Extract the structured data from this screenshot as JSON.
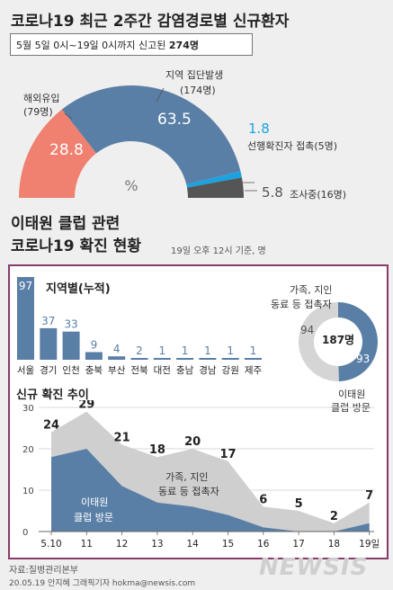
{
  "header": {
    "title": "코로나19 최근 2주간 감염경로별 신규환자",
    "subtitle_prefix": "5월 5일 0시~19일 0시까지 신고된 ",
    "subtitle_total": "274명"
  },
  "donut": {
    "center_symbol": "%",
    "segments": [
      {
        "name": "해외유입",
        "count_label": "(79명)",
        "value": 28.8,
        "color": "#f08070"
      },
      {
        "name": "지역 집단발생",
        "count_label": "(174명)",
        "value": 63.5,
        "color": "#5a7fa6"
      },
      {
        "name": "선행확진자 접촉",
        "count_label": "(5명)",
        "value": 1.8,
        "color": "#1aa3e0"
      },
      {
        "name": "조사중",
        "count_label": "(16명)",
        "value": 5.8,
        "color": "#555555"
      }
    ],
    "labels": {
      "seg0_name": "해외유입",
      "seg0_count": "(79명)",
      "seg0_value": "28.8",
      "seg1_name": "지역 집단발생",
      "seg1_count": "(174명)",
      "seg1_value": "63.5",
      "seg2_value": "1.8",
      "seg2_text": "선행확진자 접촉(5명)",
      "seg3_value": "5.8",
      "seg3_text": "조사중(16명)"
    }
  },
  "section2": {
    "title_line1": "이태원 클럽 관련",
    "title_line2": "코로나19 확진 현황",
    "note": "19일 오후 12시 기준, 명"
  },
  "regional": {
    "title": "지역별(누적)",
    "bar_color": "#5a7fa6"
  },
  "ring": {
    "total": "187명",
    "outer_value": "93",
    "inner_value": "94",
    "label_family": "가족, 지인",
    "label_family2": "동료 등 접촉자",
    "label_club": "이태원",
    "label_club2": "클럽 방문"
  },
  "trend": {
    "title": "신규 확진 추이",
    "area_label_club": "이태원",
    "area_label_club2": "클럽 방문",
    "area_label_contact": "가족, 지인",
    "area_label_contact2": "동료 등 접촉자"
  },
  "footer": {
    "source": "자료:질병관리본부",
    "credit": "20.05.19 안지혜 그래픽기자 hokma@newsis.com",
    "watermark": "NEWSIS"
  },
  "chart_data": [
    {
      "type": "pie",
      "title": "코로나19 최근 2주간 감염경로별 신규환자",
      "categories": [
        "해외유입",
        "지역 집단발생",
        "선행확진자 접촉",
        "조사중"
      ],
      "values": [
        28.8,
        63.5,
        1.8,
        5.8
      ],
      "counts": [
        79,
        174,
        5,
        16
      ],
      "unit": "%"
    },
    {
      "type": "bar",
      "title": "지역별(누적)",
      "categories": [
        "서울",
        "경기",
        "인천",
        "충북",
        "부산",
        "전북",
        "대전",
        "충남",
        "경남",
        "강원",
        "제주"
      ],
      "values": [
        97,
        37,
        33,
        9,
        4,
        2,
        1,
        1,
        1,
        1,
        1
      ],
      "ylim": [
        0,
        97
      ]
    },
    {
      "type": "pie",
      "categories": [
        "이태원 클럽 방문",
        "가족, 지인 동료 등 접촉자"
      ],
      "values": [
        93,
        94
      ],
      "total": "187명"
    },
    {
      "type": "area",
      "title": "신규 확진 추이",
      "x": [
        "5.10",
        "11",
        "12",
        "13",
        "14",
        "15",
        "16",
        "17",
        "18",
        "19일"
      ],
      "series": [
        {
          "name": "이태원 클럽 방문",
          "values": [
            18,
            20,
            11,
            7,
            6,
            4,
            1,
            0,
            0,
            2
          ]
        },
        {
          "name": "가족, 지인 동료 등 접촉자",
          "values": [
            6,
            9,
            10,
            11,
            14,
            13,
            5,
            5,
            2,
            5
          ]
        }
      ],
      "totals": [
        24,
        29,
        21,
        18,
        20,
        17,
        6,
        5,
        2,
        7
      ],
      "ylim": [
        0,
        30
      ],
      "yticks": [
        0,
        10,
        20,
        30
      ]
    }
  ]
}
